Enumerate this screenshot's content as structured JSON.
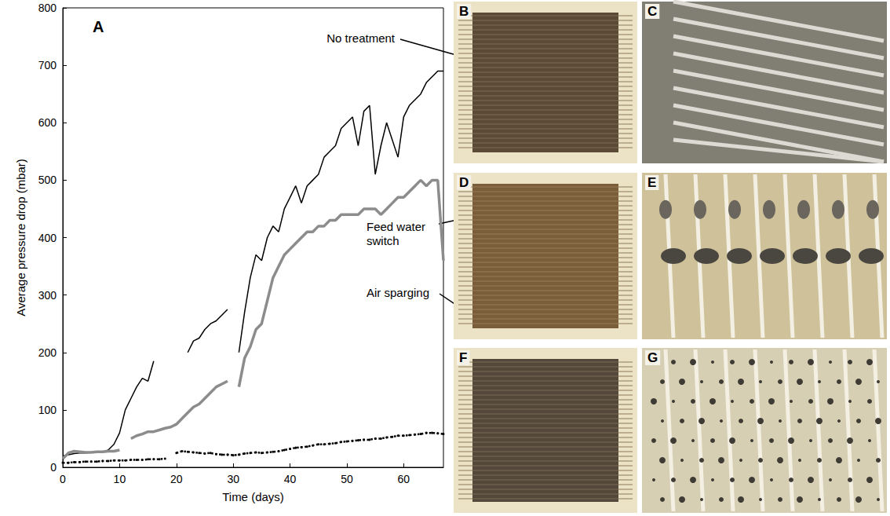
{
  "chart_data": {
    "type": "line",
    "x_label": "Time (days)",
    "y_label": "Average pressure drop (mbar)",
    "annotations": [
      {
        "text": "A"
      }
    ],
    "x": [
      0,
      1,
      2,
      3,
      4,
      5,
      6,
      7,
      8,
      9,
      10,
      11,
      12,
      13,
      14,
      15,
      16,
      17,
      18,
      19,
      20,
      21,
      22,
      23,
      24,
      25,
      26,
      27,
      28,
      29,
      30,
      31,
      32,
      33,
      34,
      35,
      36,
      37,
      38,
      39,
      40,
      41,
      42,
      43,
      44,
      45,
      46,
      47,
      48,
      49,
      50,
      51,
      52,
      53,
      54,
      55,
      56,
      57,
      58,
      59,
      60,
      61,
      62,
      63,
      64,
      65,
      66,
      67
    ],
    "series": [
      {
        "name": "No treatment",
        "color": "#000000",
        "line_style": "solid",
        "values": [
          20,
          22,
          24,
          25,
          25,
          26,
          26,
          27,
          30,
          40,
          60,
          100,
          120,
          140,
          155,
          150,
          185,
          null,
          null,
          null,
          null,
          null,
          200,
          220,
          225,
          240,
          250,
          255,
          265,
          275,
          null,
          200,
          270,
          330,
          370,
          360,
          400,
          420,
          410,
          450,
          470,
          490,
          460,
          490,
          500,
          510,
          540,
          550,
          560,
          590,
          600,
          610,
          560,
          620,
          630,
          510,
          560,
          600,
          570,
          540,
          610,
          630,
          640,
          650,
          670,
          680,
          690,
          690
        ]
      },
      {
        "name": "Feed water switch",
        "color": "#8c8c8c",
        "line_style": "solid",
        "values": [
          15,
          25,
          28,
          27,
          26,
          26,
          27,
          27,
          28,
          28,
          30,
          null,
          50,
          55,
          58,
          62,
          62,
          65,
          68,
          70,
          75,
          85,
          95,
          105,
          110,
          120,
          130,
          140,
          145,
          150,
          null,
          140,
          190,
          210,
          240,
          250,
          290,
          330,
          350,
          370,
          380,
          390,
          400,
          410,
          410,
          420,
          420,
          430,
          430,
          440,
          440,
          440,
          440,
          450,
          450,
          450,
          440,
          450,
          460,
          470,
          470,
          480,
          490,
          500,
          490,
          500,
          500,
          360
        ]
      },
      {
        "name": "Air sparging",
        "color": "#000000",
        "line_style": "dotted",
        "marker": "circle",
        "values": [
          8,
          8,
          9,
          9,
          10,
          10,
          10,
          11,
          11,
          12,
          12,
          12,
          13,
          13,
          13,
          14,
          14,
          14,
          15,
          null,
          25,
          28,
          27,
          26,
          25,
          24,
          25,
          23,
          22,
          22,
          21,
          22,
          24,
          25,
          26,
          25,
          26,
          27,
          28,
          30,
          32,
          34,
          35,
          36,
          38,
          40,
          40,
          41,
          42,
          44,
          45,
          46,
          47,
          48,
          48,
          50,
          50,
          52,
          53,
          55,
          55,
          56,
          57,
          58,
          60,
          60,
          59,
          58
        ]
      }
    ],
    "xlim": [
      0,
      67
    ],
    "xticks": [
      0,
      10,
      20,
      30,
      40,
      50,
      60
    ],
    "ylim": [
      0,
      800
    ],
    "yticks": [
      0,
      100,
      200,
      300,
      400,
      500,
      600,
      700,
      800
    ],
    "grid": false
  },
  "images": [
    {
      "label": "B"
    },
    {
      "label": "C"
    },
    {
      "label": "D"
    },
    {
      "label": "E"
    },
    {
      "label": "F"
    },
    {
      "label": "G"
    }
  ]
}
